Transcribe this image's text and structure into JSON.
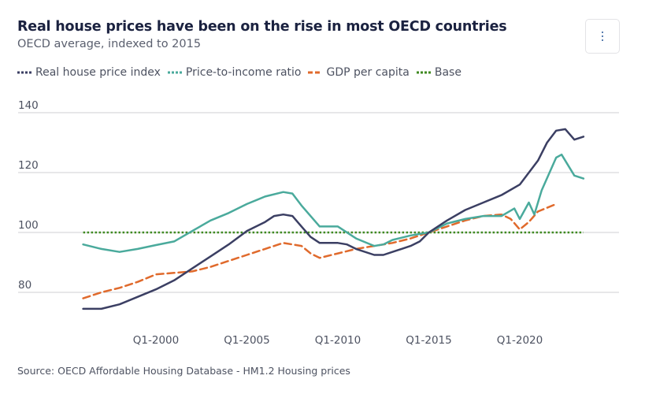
{
  "header": {
    "title": "Real house prices have been on the rise in most OECD countries",
    "subtitle": "OECD average, indexed to 2015",
    "menu_icon": "vertical-ellipsis-icon"
  },
  "legend": [
    {
      "label": "Real house price index",
      "color": "#3b3f63",
      "style": "solid"
    },
    {
      "label": "Price-to-income ratio",
      "color": "#4aaa9c",
      "style": "solid"
    },
    {
      "label": "GDP per capita",
      "color": "#e06a2c",
      "style": "dashed"
    },
    {
      "label": "Base",
      "color": "#3f8a21",
      "style": "dotted"
    }
  ],
  "chart_data": {
    "type": "line",
    "title": "Real house prices have been on the rise in most OECD countries",
    "subtitle": "OECD average, indexed to 2015",
    "xlabel": "",
    "ylabel": "",
    "xlim": [
      1996,
      2023.5
    ],
    "ylim": [
      72,
      140
    ],
    "yticks": [
      80,
      100,
      120,
      140
    ],
    "ytick_labels": [
      "80",
      "100",
      "120",
      "140"
    ],
    "xticks": [
      2000,
      2005,
      2010,
      2015,
      2020
    ],
    "xtick_labels": [
      "Q1-2000",
      "Q1-2005",
      "Q1-2010",
      "Q1-2015",
      "Q1-2020"
    ],
    "grid": "horizontal",
    "legend_position": "top-left",
    "series": [
      {
        "name": "Real house price index",
        "color": "#3b3f63",
        "style": "solid",
        "x": [
          1996,
          1997,
          1998,
          1999,
          2000,
          2001,
          2002,
          2003,
          2004,
          2005,
          2006,
          2006.5,
          2007,
          2007.5,
          2008,
          2008.5,
          2009,
          2010,
          2010.5,
          2011,
          2012,
          2012.5,
          2013,
          2014,
          2014.5,
          2015,
          2016,
          2017,
          2018,
          2019,
          2020,
          2021,
          2021.5,
          2022,
          2022.5,
          2023,
          2023.5
        ],
        "values": [
          74.5,
          74.5,
          76,
          78.5,
          81,
          84,
          88,
          92,
          96,
          100.5,
          103.5,
          105.5,
          106,
          105.5,
          102,
          98.5,
          96.5,
          96.5,
          96,
          94.5,
          92.5,
          92.5,
          93.5,
          95.5,
          97,
          100,
          104,
          107.5,
          110,
          112.5,
          116,
          124,
          130,
          134,
          134.5,
          131,
          132
        ]
      },
      {
        "name": "Price-to-income ratio",
        "color": "#4aaa9c",
        "style": "solid",
        "x": [
          1996,
          1997,
          1998,
          1999,
          2000,
          2001,
          2002,
          2003,
          2004,
          2005,
          2006,
          2007,
          2007.5,
          2008,
          2009,
          2010,
          2011,
          2012,
          2012.5,
          2013,
          2014,
          2015,
          2016,
          2017,
          2018,
          2019,
          2019.7,
          2020,
          2020.5,
          2020.8,
          2021.2,
          2022,
          2022.3,
          2023,
          2023.5
        ],
        "values": [
          96,
          94.5,
          93.5,
          94.5,
          95.8,
          97,
          100.5,
          104,
          106.5,
          109.5,
          112,
          113.5,
          113,
          109,
          102,
          102,
          98,
          95.5,
          96,
          97.5,
          99,
          100,
          103,
          104.5,
          105.5,
          105.5,
          108,
          104.5,
          110,
          106,
          114,
          125,
          126,
          119,
          118
        ]
      },
      {
        "name": "GDP per capita",
        "color": "#e06a2c",
        "style": "dashed",
        "x": [
          1996,
          1997,
          1998,
          1999,
          2000,
          2001,
          2002,
          2003,
          2004,
          2005,
          2006,
          2007,
          2008,
          2008.5,
          2009,
          2010,
          2011,
          2012,
          2013,
          2014,
          2015,
          2016,
          2017,
          2018,
          2019,
          2019.5,
          2020,
          2020.5,
          2021,
          2022
        ],
        "values": [
          78,
          80,
          81.5,
          83.5,
          86,
          86.5,
          87,
          88.5,
          90.5,
          92.5,
          94.5,
          96.5,
          95.5,
          93,
          91.5,
          93,
          94.5,
          95.5,
          96.5,
          98,
          100,
          102,
          104,
          105.5,
          106,
          104.5,
          101,
          103.5,
          107,
          109.5
        ]
      },
      {
        "name": "Base",
        "color": "#3f8a21",
        "style": "dotted",
        "x": [
          1996,
          2023.5
        ],
        "values": [
          100,
          100
        ]
      }
    ]
  },
  "footer": {
    "source": "Source: OECD Affordable Housing Database - HM1.2 Housing prices"
  }
}
